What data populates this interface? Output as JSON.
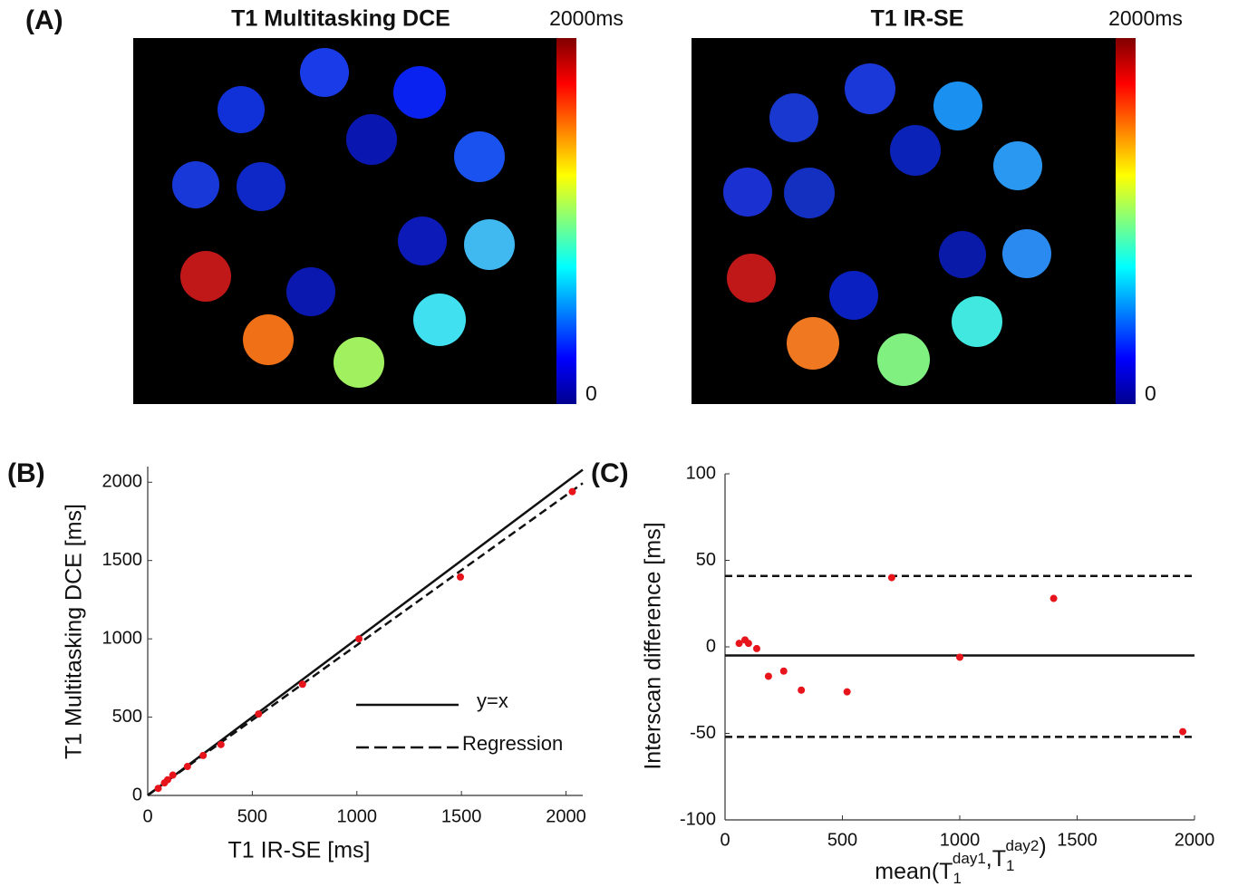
{
  "panel_labels": [
    "(A)",
    "(B)",
    "(C)"
  ],
  "chart_data": [
    {
      "type": "colormap",
      "title": "T1 Multitasking DCE",
      "clim": [
        0,
        2000
      ],
      "colorbar_ticks": [
        {
          "value": 2000,
          "label": "2000ms"
        },
        0
      ]
    },
    {
      "type": "colormap",
      "title": "T1 IR-SE",
      "clim": [
        0,
        2000
      ],
      "colorbar_ticks": [
        {
          "value": 2000,
          "label": "2000ms"
        },
        0
      ]
    },
    {
      "type": "scatter",
      "xlabel": "T1 IR-SE [ms]",
      "ylabel": "T1 Multitasking DCE [ms]",
      "x": [
        50,
        80,
        95,
        120,
        190,
        265,
        350,
        530,
        740,
        1010,
        1495,
        2030
      ],
      "y": [
        45,
        80,
        100,
        130,
        185,
        255,
        325,
        520,
        710,
        1000,
        1395,
        1940
      ],
      "color": "#e8141c",
      "xlim": [
        0,
        2080
      ],
      "ylim": [
        0,
        2100
      ],
      "xticks": [
        0,
        500,
        1000,
        1500,
        2000
      ],
      "yticks": [
        0,
        500,
        1000,
        1500,
        2000
      ],
      "lines": [
        {
          "name": "y=x",
          "slope": 1,
          "intercept": 0,
          "dash": "solid"
        },
        {
          "name": "Regression",
          "slope": 0.957,
          "intercept": 3,
          "dash": "dashed"
        }
      ],
      "legend": "lower right"
    },
    {
      "type": "scatter",
      "ylabel": "Interscan difference [ms]",
      "xlabel": {
        "prefix": "mean(",
        "terms": [
          {
            "base": "T",
            "sub": "1",
            "sup": "day1"
          },
          {
            "base": "T",
            "sub": "1",
            "sup": "day2"
          }
        ],
        "sep": ",",
        "suffix": ")"
      },
      "x": [
        60,
        85,
        100,
        135,
        185,
        250,
        325,
        520,
        710,
        1000,
        1400,
        1950
      ],
      "y": [
        2,
        4,
        2,
        -1,
        -17,
        -14,
        -25,
        -26,
        40,
        -6,
        28,
        -49
      ],
      "color": "#e8141c",
      "xlim": [
        0,
        2000
      ],
      "ylim": [
        -100,
        100
      ],
      "xticks": [
        0,
        500,
        1000,
        1500,
        2000
      ],
      "yticks": [
        -100,
        -50,
        0,
        50,
        100
      ],
      "hlines": [
        {
          "value": -5,
          "dash": "solid"
        },
        {
          "value": 41,
          "dash": "dashed"
        },
        {
          "value": -52,
          "dash": "dashed"
        }
      ]
    }
  ]
}
